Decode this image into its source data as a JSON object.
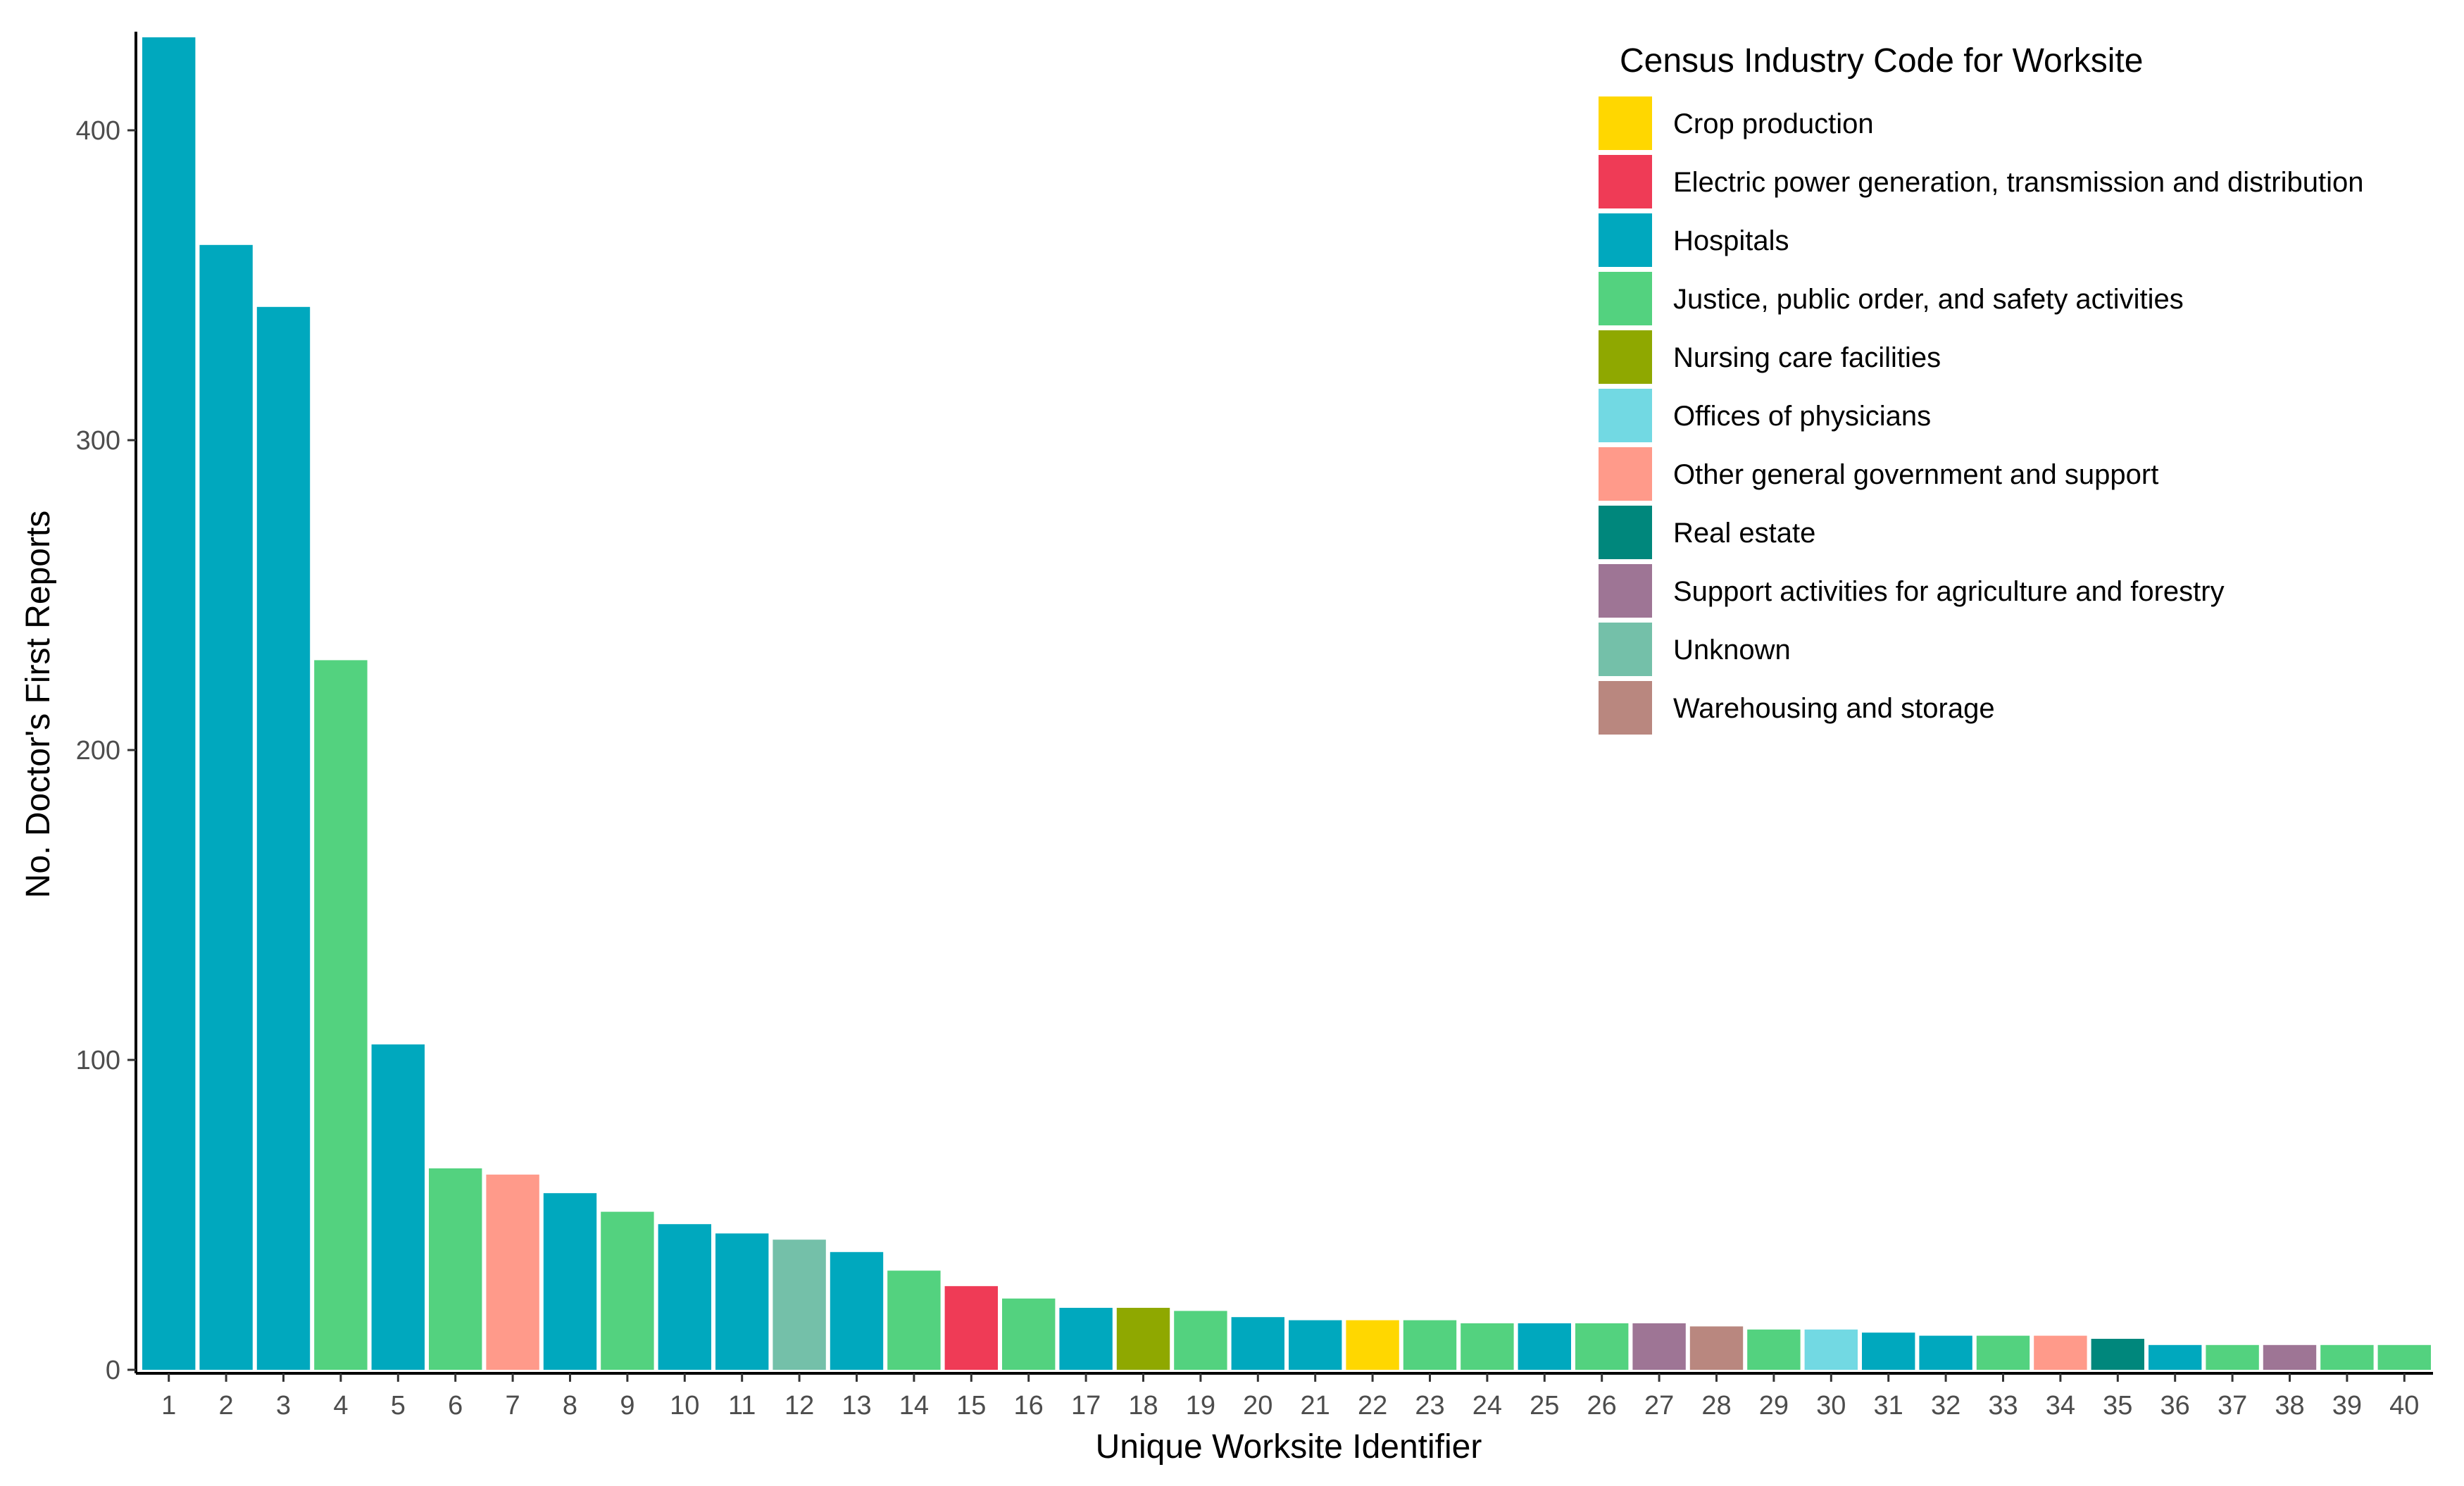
{
  "chart_data": {
    "type": "bar",
    "title": "",
    "xlabel": "Unique Worksite Identifier",
    "ylabel": "No. Doctor's First Reports",
    "ylim": [
      0,
      430
    ],
    "yticks": [
      0,
      100,
      200,
      300,
      400
    ],
    "grid": false,
    "legend": {
      "title": "Census Industry Code for Worksite",
      "placement": "top-right",
      "entries": [
        {
          "label": "Crop production",
          "color": "#FFD700"
        },
        {
          "label": "Electric power generation, transmission and distribution",
          "color": "#EF3B56"
        },
        {
          "label": "Hospitals",
          "color": "#00A8BE"
        },
        {
          "label": "Justice, public order, and safety activities",
          "color": "#53D27F"
        },
        {
          "label": "Nursing care facilities",
          "color": "#8FA800"
        },
        {
          "label": "Offices of physicians",
          "color": "#72D9E3"
        },
        {
          "label": "Other general government and support",
          "color": "#FF9A8A"
        },
        {
          "label": "Real estate",
          "color": "#00877C"
        },
        {
          "label": "Support activities for agriculture and forestry",
          "color": "#9E7595"
        },
        {
          "label": "Unknown",
          "color": "#74C0A9"
        },
        {
          "label": "Warehousing and storage",
          "color": "#B9877F"
        }
      ]
    },
    "categories": [
      "1",
      "2",
      "3",
      "4",
      "5",
      "6",
      "7",
      "8",
      "9",
      "10",
      "11",
      "12",
      "13",
      "14",
      "15",
      "16",
      "17",
      "18",
      "19",
      "20",
      "21",
      "22",
      "23",
      "24",
      "25",
      "26",
      "27",
      "28",
      "29",
      "30",
      "31",
      "32",
      "33",
      "34",
      "35",
      "36",
      "37",
      "38",
      "39",
      "40"
    ],
    "values": [
      430,
      363,
      343,
      229,
      105,
      65,
      63,
      57,
      51,
      47,
      44,
      42,
      38,
      32,
      27,
      23,
      20,
      20,
      19,
      17,
      16,
      16,
      16,
      15,
      15,
      15,
      15,
      14,
      13,
      13,
      12,
      11,
      11,
      11,
      10,
      8,
      8,
      8,
      8,
      8
    ],
    "bar_industries": [
      "Hospitals",
      "Hospitals",
      "Hospitals",
      "Justice, public order, and safety activities",
      "Hospitals",
      "Justice, public order, and safety activities",
      "Other general government and support",
      "Hospitals",
      "Justice, public order, and safety activities",
      "Hospitals",
      "Hospitals",
      "Unknown",
      "Hospitals",
      "Justice, public order, and safety activities",
      "Electric power generation, transmission and distribution",
      "Justice, public order, and safety activities",
      "Hospitals",
      "Nursing care facilities",
      "Justice, public order, and safety activities",
      "Hospitals",
      "Hospitals",
      "Crop production",
      "Justice, public order, and safety activities",
      "Justice, public order, and safety activities",
      "Hospitals",
      "Justice, public order, and safety activities",
      "Support activities for agriculture and forestry",
      "Warehousing and storage",
      "Justice, public order, and safety activities",
      "Offices of physicians",
      "Hospitals",
      "Hospitals",
      "Justice, public order, and safety activities",
      "Other general government and support",
      "Real estate",
      "Hospitals",
      "Justice, public order, and safety activities",
      "Support activities for agriculture and forestry",
      "Justice, public order, and safety activities",
      "Justice, public order, and safety activities"
    ]
  }
}
